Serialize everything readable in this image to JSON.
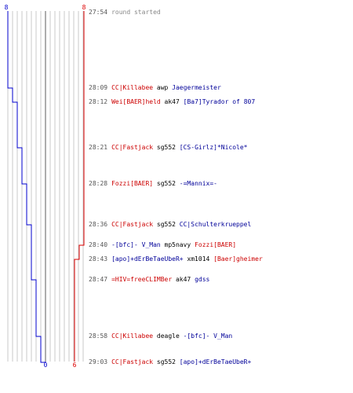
{
  "scores": {
    "blue_start": "8",
    "red_start": "8",
    "blue_end": "0",
    "red_end": "6"
  },
  "colors": {
    "blue_team": "#0000cc",
    "red_team": "#dd0000",
    "grid": "#c8c8c8",
    "center_line": "#777777"
  },
  "events": [
    {
      "time": "27:54",
      "parts": [
        {
          "text": "round started",
          "cls": "gray"
        }
      ]
    },
    {
      "time": "28:09",
      "parts": [
        {
          "text": "CC|Killabee",
          "cls": "red"
        },
        {
          "text": " awp ",
          "cls": ""
        },
        {
          "text": "Jaegermeister",
          "cls": "blue"
        }
      ]
    },
    {
      "time": "28:12",
      "parts": [
        {
          "text": "Wei[BAER]held",
          "cls": "red"
        },
        {
          "text": " ak47 ",
          "cls": ""
        },
        {
          "text": "[Ba7]Tyrador of 807",
          "cls": "blue"
        }
      ]
    },
    {
      "time": "28:21",
      "parts": [
        {
          "text": "CC|Fastjack",
          "cls": "red"
        },
        {
          "text": " sg552 ",
          "cls": ""
        },
        {
          "text": "[CS-Girlz]*Nicole*",
          "cls": "blue"
        }
      ]
    },
    {
      "time": "28:28",
      "parts": [
        {
          "text": "Fozzi[BAER]",
          "cls": "red"
        },
        {
          "text": " sg552 ",
          "cls": ""
        },
        {
          "text": "-=Mannix=-",
          "cls": "blue"
        }
      ]
    },
    {
      "time": "28:36",
      "parts": [
        {
          "text": "CC|Fastjack",
          "cls": "red"
        },
        {
          "text": " sg552 ",
          "cls": ""
        },
        {
          "text": "CC|Schulterkrueppel",
          "cls": "blue"
        }
      ]
    },
    {
      "time": "28:40",
      "parts": [
        {
          "text": "-[bfc]- V_Man",
          "cls": "blue"
        },
        {
          "text": " mp5navy ",
          "cls": ""
        },
        {
          "text": "Fozzi[BAER]",
          "cls": "red"
        }
      ]
    },
    {
      "time": "28:43",
      "parts": [
        {
          "text": "[apo]+dErBeTaeUbeR+",
          "cls": "blue"
        },
        {
          "text": " xm1014 ",
          "cls": ""
        },
        {
          "text": "[Baer]gheimer",
          "cls": "red"
        }
      ]
    },
    {
      "time": "28:47",
      "parts": [
        {
          "text": "=HIV=freeCLIMBer",
          "cls": "red"
        },
        {
          "text": " ak47 ",
          "cls": ""
        },
        {
          "text": "gdss",
          "cls": "blue"
        }
      ]
    },
    {
      "time": "28:58",
      "parts": [
        {
          "text": "CC|Killabee",
          "cls": "red"
        },
        {
          "text": " deagle ",
          "cls": ""
        },
        {
          "text": "-[bfc]- V_Man",
          "cls": "blue"
        }
      ]
    },
    {
      "time": "29:03",
      "parts": [
        {
          "text": "CC|Fastjack",
          "cls": "red"
        },
        {
          "text": " sg552 ",
          "cls": ""
        },
        {
          "text": "[apo]+dErBeTaeUbeR+",
          "cls": "blue"
        }
      ]
    }
  ]
}
